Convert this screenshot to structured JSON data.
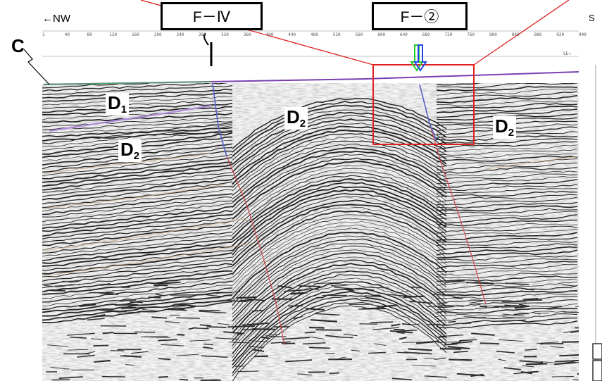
{
  "directions": {
    "left": "←NW",
    "right": "S"
  },
  "fault_labels": [
    {
      "id": "f4",
      "text": "F－Ⅳ"
    },
    {
      "id": "f2",
      "text": "F－②"
    }
  ],
  "corner_label": "C",
  "units": {
    "d1": {
      "base": "D",
      "sub": "1"
    },
    "d2_left": {
      "base": "D",
      "sub": "2"
    },
    "d2_center": {
      "base": "D",
      "sub": "2"
    },
    "d2_right": {
      "base": "D",
      "sub": "2"
    }
  },
  "scale_top": [
    "1",
    "40",
    "80",
    "120",
    "160",
    "200",
    "240",
    "280",
    "320",
    "360",
    "400",
    "440",
    "480",
    "520",
    "560",
    "600",
    "640",
    "680",
    "720",
    "760",
    "800",
    "840",
    "880",
    "920",
    "940"
  ],
  "scale_bottom_suffix": "SE→",
  "colors": {
    "seafloor": "#7a3fb0",
    "d1_base": "#b08ad8",
    "fault_blue": "#5566cc",
    "fault_red": "#d04a4a",
    "horizon_tan": "#c9a97a",
    "callout_red": "#e02020",
    "arrow_green": "#22cc22",
    "arrow_blue": "#2244ee"
  }
}
